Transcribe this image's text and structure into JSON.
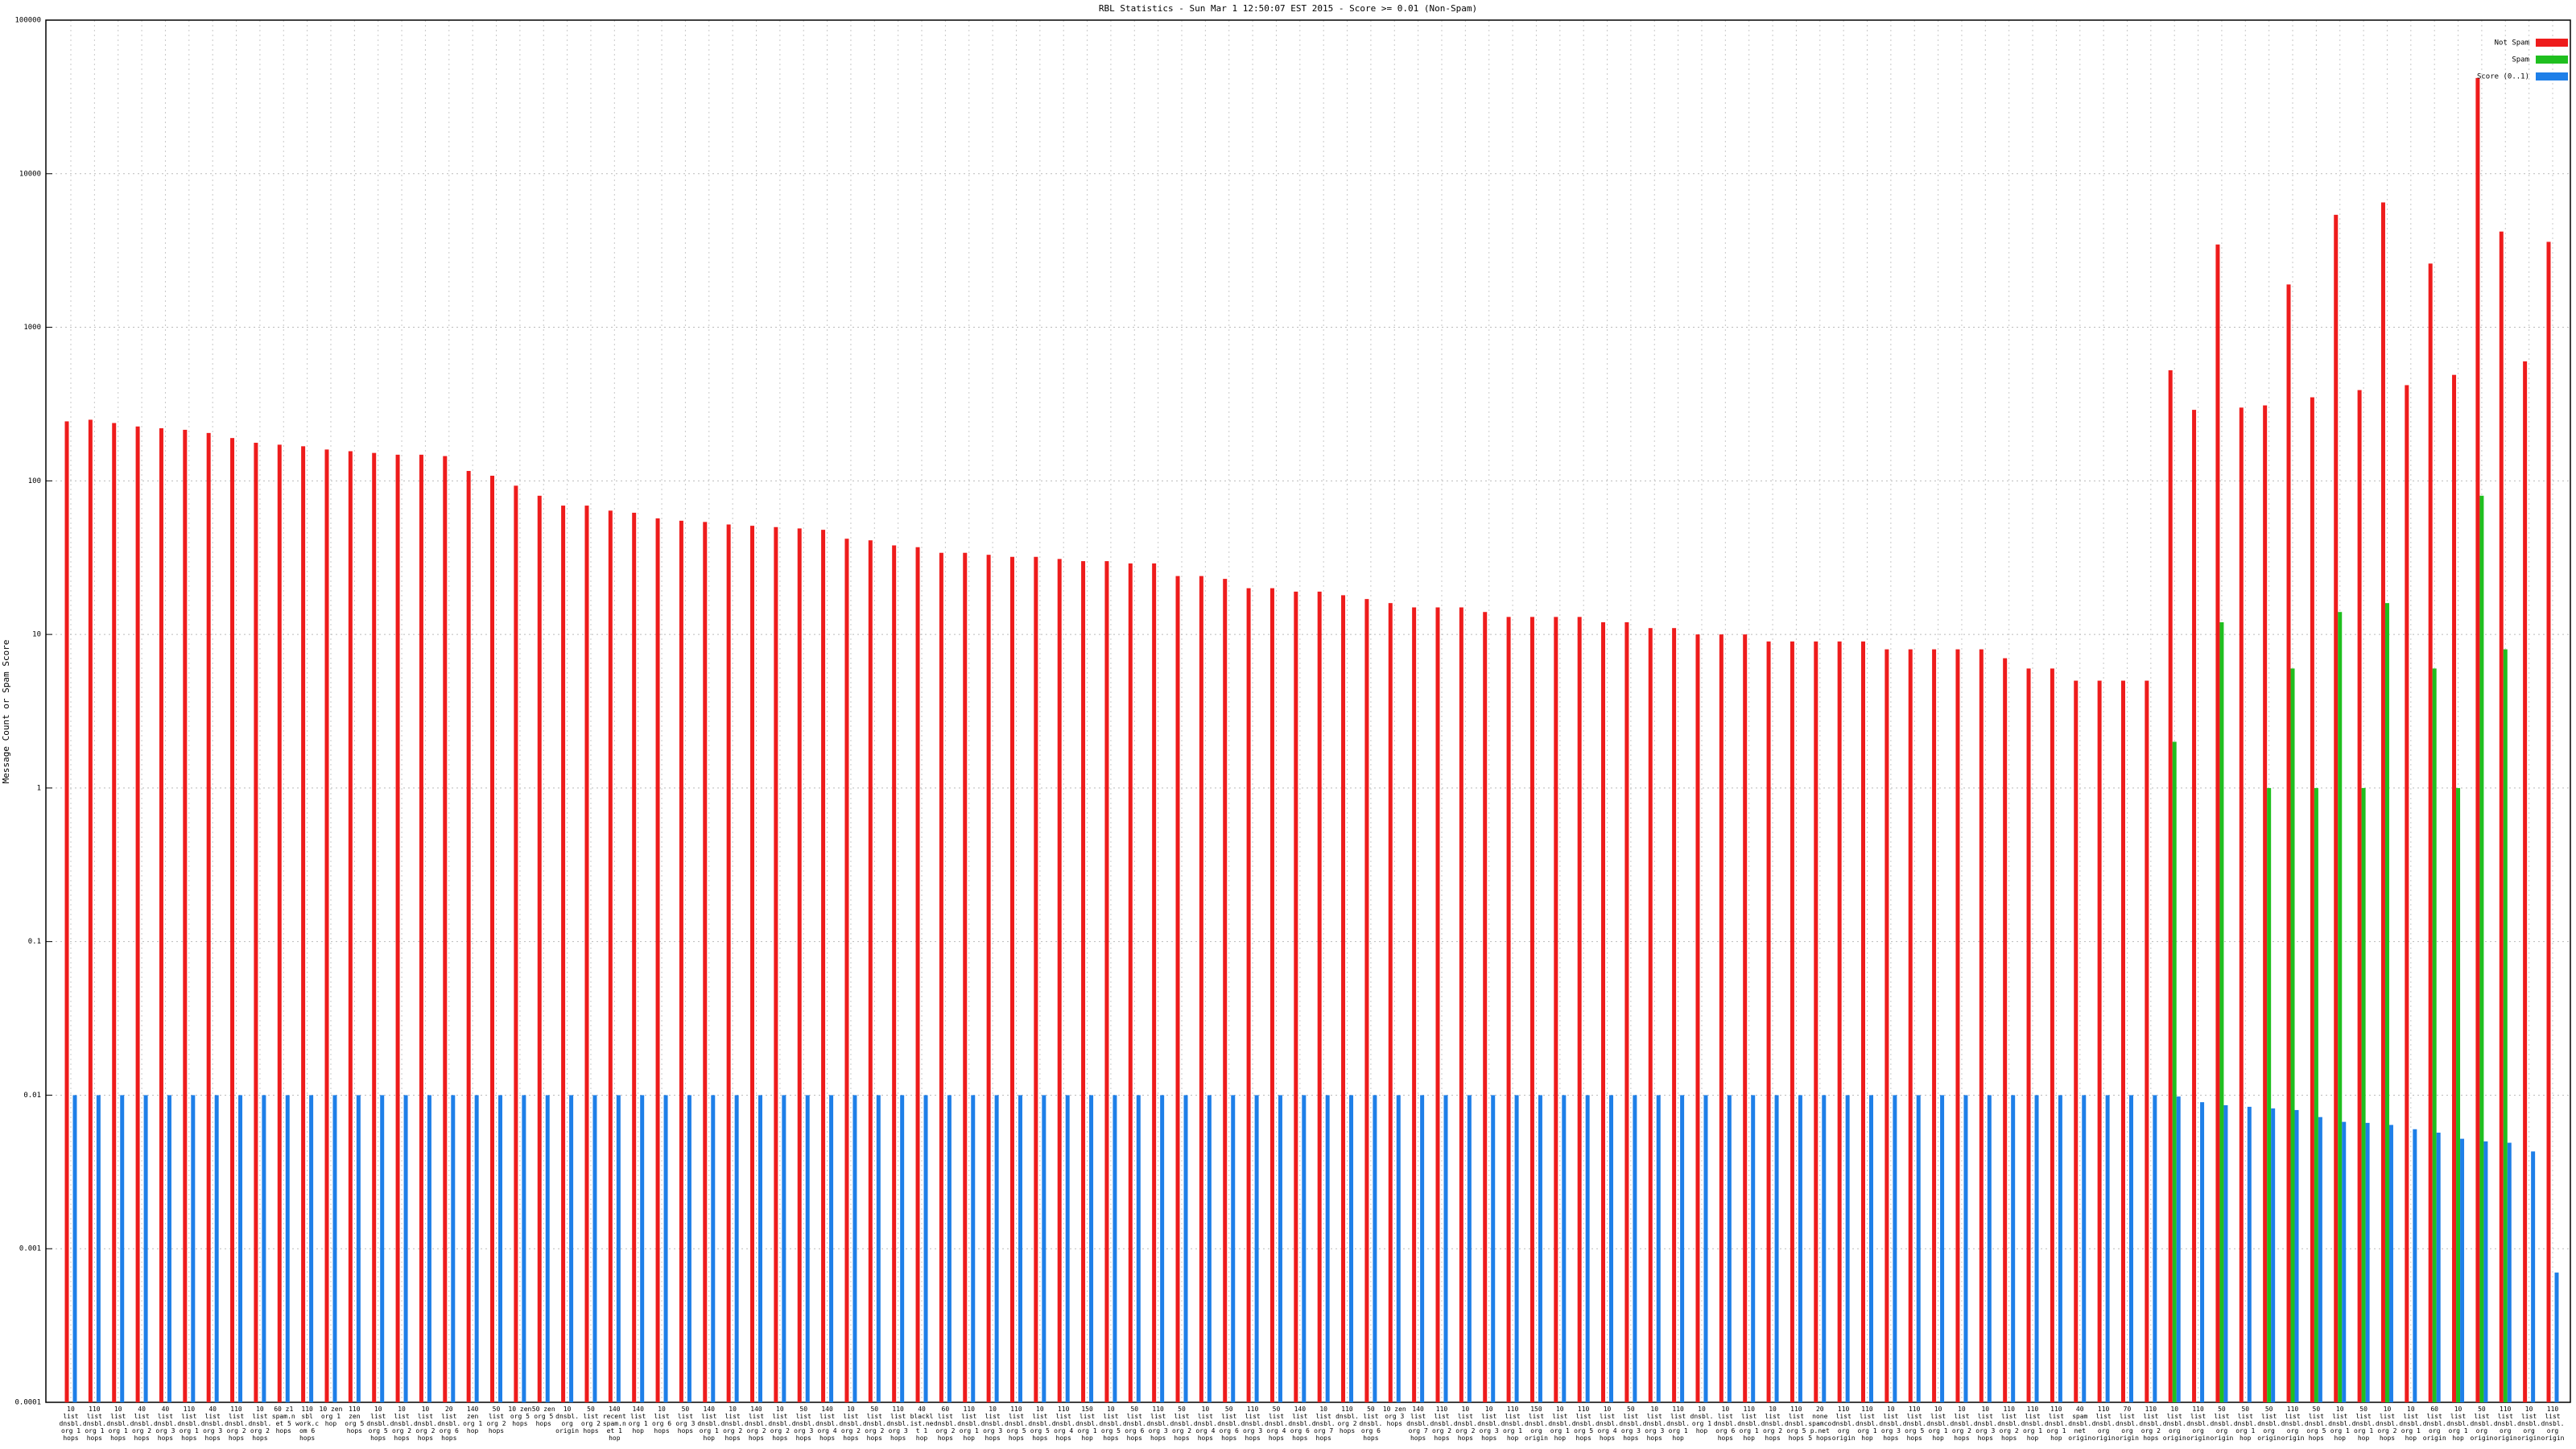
{
  "chart_data": {
    "type": "bar",
    "title": "RBL Statistics - Sun Mar  1 12:50:07 EST 2015 - Score >= 0.01 (Non-Spam)",
    "y_label": "Message Count or Spam Score",
    "log_scale": true,
    "grid": true,
    "legend": "top-right",
    "ylim": [
      0.0001,
      100000
    ],
    "yticks": [
      0.0001,
      0.001,
      0.01,
      0.1,
      1,
      10,
      100,
      1000,
      10000,
      100000
    ],
    "categories": [
      "10 list dnsbl.org 1 hops",
      "110 list dnsbl.org 1 hops",
      "10 list dnsbl.org 1 hops",
      "40 list dnsbl.org 2 hops",
      "40 list dnsbl.org 3 hops",
      "110 list dnsbl.org 1 hops",
      "40 list dnsbl.org 3 hops",
      "110 list dnsbl.org 2 hops",
      "10 list dnsbl.org 2 hops",
      "60 z1 spam.net 5 hops",
      "110 sbl work.com 6 hops",
      "10 zen org 1 hop",
      "110 zen org 5 hops",
      "10 list dnsbl.org 5 hops",
      "10 list dnsbl.org 2 hops",
      "10 list dnsbl.org 2 hops",
      "20 list dnsbl.org 6 hops",
      "140 zen org 1 hop",
      "50 list org 2 hops",
      "10 zen org 5 hops",
      "50 zen org 5 hops",
      "10 dnsbl.org origin",
      "50 list org 2 hops",
      "140 recent spam.net 1 hop",
      "140 list org 1 hop",
      "10 list org 6 hops",
      "50 list org 3 hops",
      "140 list dnsbl.org 1 hop",
      "10 list dnsbl.org 2 hops",
      "140 list dnsbl.org 2 hops",
      "10 list dnsbl.org 2 hops",
      "50 list dnsbl.org 3 hops",
      "140 list dnsbl.org 4 hops",
      "10 list dnsbl.org 2 hops",
      "50 list dnsbl.org 2 hops",
      "110 list dnsbl.org 3 hops",
      "40 blacklist.net 1 hop",
      "60 list dnsbl.org 2 hops",
      "110 list dnsbl.org 1 hop",
      "10 list dnsbl.org 3 hops",
      "110 list dnsbl.org 5 hops",
      "10 list dnsbl.org 5 hops",
      "110 list dnsbl.org 4 hops",
      "150 list dnsbl.org 1 hop",
      "10 list dnsbl.org 5 hops",
      "50 list dnsbl.org 6 hops",
      "110 list dnsbl.org 3 hops",
      "50 list dnsbl.org 2 hops",
      "10 list dnsbl.org 4 hops",
      "50 list dnsbl.org 6 hops",
      "110 list dnsbl.org 3 hops",
      "50 list dnsbl.org 4 hops",
      "140 list dnsbl.org 6 hops",
      "10 list dnsbl.org 7 hops",
      "110 dnsbl.org 2 hops",
      "50 list dnsbl.org 6 hops",
      "10 zen org 3 hops",
      "140 list dnsbl.org 7 hops",
      "110 list dnsbl.org 2 hops",
      "10 list dnsbl.org 2 hops",
      "10 list dnsbl.org 3 hops",
      "110 list dnsbl.org 1 hop",
      "150 list dnsbl.org origin",
      "10 list dnsbl.org 1 hop",
      "110 list dnsbl.org 5 hops",
      "10 list dnsbl.org 4 hops",
      "50 list dnsbl.org 3 hops",
      "10 list dnsbl.org 3 hops",
      "110 list dnsbl.org 1 hop",
      "10 dnsbl.org 1 hop",
      "10 list dnsbl.org 6 hops",
      "110 list dnsbl.org 1 hop",
      "10 list dnsbl.org 2 hops",
      "110 list dnsbl.org 5 hops",
      "20 none spamcop.net 5 hops",
      "110 list dnsbl.org origin",
      "110 list dnsbl.org 1 hop",
      "10 list dnsbl.org 3 hops",
      "110 list dnsbl.org 5 hops",
      "10 list dnsbl.org 1 hop",
      "10 list dnsbl.org 2 hops",
      "10 list dnsbl.org 3 hops",
      "110 list dnsbl.org 2 hops",
      "110 list dnsbl.org 1 hop",
      "110 list dnsbl.org 1 hop",
      "40 spam dnsbl.net origin",
      "110 list dnsbl.org origin",
      "70 list dnsbl.org origin",
      "110 list dnsbl.org 2 hops",
      "10 list dnsbl.org origin",
      "110 list dnsbl.org origin",
      "50 list dnsbl.org origin",
      "50 list dnsbl.org 1 hop",
      "50 list dnsbl.org origin",
      "110 list dnsbl.org origin",
      "50 list dnsbl.org 5 hops",
      "10 list dnsbl.org 1 hop",
      "50 list dnsbl.org 1 hop",
      "10 list dnsbl.org 2 hops",
      "10 list dnsbl.org 1 hop",
      "60 list dnsbl.org origin",
      "10 list dnsbl.org 1 hop",
      "50 list dnsbl.org origin",
      "110 list dnsbl.org origin",
      "10 list dnsbl.org origin",
      "110 list dnsbl.org origin"
    ],
    "series": [
      {
        "name": "Not Spam",
        "color": "#ee1c1c",
        "values": [
          244,
          250,
          238,
          226,
          220,
          215,
          205,
          190,
          177,
          172,
          168,
          160,
          156,
          152,
          148,
          148,
          145,
          116,
          108,
          93,
          80,
          69,
          69,
          64,
          62,
          57,
          55,
          54,
          52,
          51,
          50,
          49,
          48,
          42,
          41,
          38,
          37,
          34,
          34,
          33,
          32,
          32,
          31,
          30,
          30,
          29,
          29,
          24,
          24,
          23,
          20,
          20,
          19,
          19,
          18,
          17,
          16,
          15,
          15,
          15,
          14,
          13,
          13,
          13,
          13,
          12,
          12,
          11,
          11,
          10,
          10,
          10,
          9,
          9,
          9,
          9,
          9,
          8,
          8,
          8,
          8,
          8,
          7,
          6,
          6,
          5,
          5,
          5,
          5,
          525,
          290,
          3460,
          300,
          310,
          1900,
          350,
          5400,
          390,
          6500,
          420,
          2600,
          490,
          42000,
          4200,
          600,
          3600
        ]
      },
      {
        "name": "Spam",
        "color": "#1fbf1f",
        "values": [
          null,
          null,
          null,
          null,
          null,
          null,
          null,
          null,
          null,
          null,
          null,
          null,
          null,
          null,
          null,
          null,
          null,
          null,
          null,
          null,
          null,
          null,
          null,
          null,
          null,
          null,
          null,
          null,
          null,
          null,
          null,
          null,
          null,
          null,
          null,
          null,
          null,
          null,
          null,
          null,
          null,
          null,
          null,
          null,
          null,
          null,
          null,
          null,
          null,
          null,
          null,
          null,
          null,
          null,
          null,
          null,
          null,
          null,
          null,
          null,
          null,
          null,
          null,
          null,
          null,
          null,
          null,
          null,
          null,
          null,
          null,
          null,
          null,
          null,
          null,
          null,
          null,
          null,
          null,
          null,
          null,
          null,
          null,
          null,
          null,
          null,
          null,
          null,
          null,
          2,
          null,
          12,
          null,
          1,
          6,
          1,
          14,
          1,
          16,
          null,
          6,
          1,
          80,
          8,
          null,
          null
        ]
      },
      {
        "name": "Score (0..1)",
        "color": "#1e7fe8",
        "values": [
          0.01,
          0.01,
          0.01,
          0.01,
          0.01,
          0.01,
          0.01,
          0.01,
          0.01,
          0.01,
          0.01,
          0.01,
          0.01,
          0.01,
          0.01,
          0.01,
          0.01,
          0.01,
          0.01,
          0.01,
          0.01,
          0.01,
          0.01,
          0.01,
          0.01,
          0.01,
          0.01,
          0.01,
          0.01,
          0.01,
          0.01,
          0.01,
          0.01,
          0.01,
          0.01,
          0.01,
          0.01,
          0.01,
          0.01,
          0.01,
          0.01,
          0.01,
          0.01,
          0.01,
          0.01,
          0.01,
          0.01,
          0.01,
          0.01,
          0.01,
          0.01,
          0.01,
          0.01,
          0.01,
          0.01,
          0.01,
          0.01,
          0.01,
          0.01,
          0.01,
          0.01,
          0.01,
          0.01,
          0.01,
          0.01,
          0.01,
          0.01,
          0.01,
          0.01,
          0.01,
          0.01,
          0.01,
          0.01,
          0.01,
          0.01,
          0.01,
          0.01,
          0.01,
          0.01,
          0.01,
          0.01,
          0.01,
          0.01,
          0.01,
          0.01,
          0.01,
          0.01,
          0.01,
          0.01,
          0.0098,
          0.009,
          0.0086,
          0.0084,
          0.0082,
          0.008,
          0.0072,
          0.0067,
          0.0066,
          0.0064,
          0.006,
          0.0057,
          0.0052,
          0.005,
          0.0049,
          0.0043,
          0.0007
        ]
      }
    ]
  }
}
